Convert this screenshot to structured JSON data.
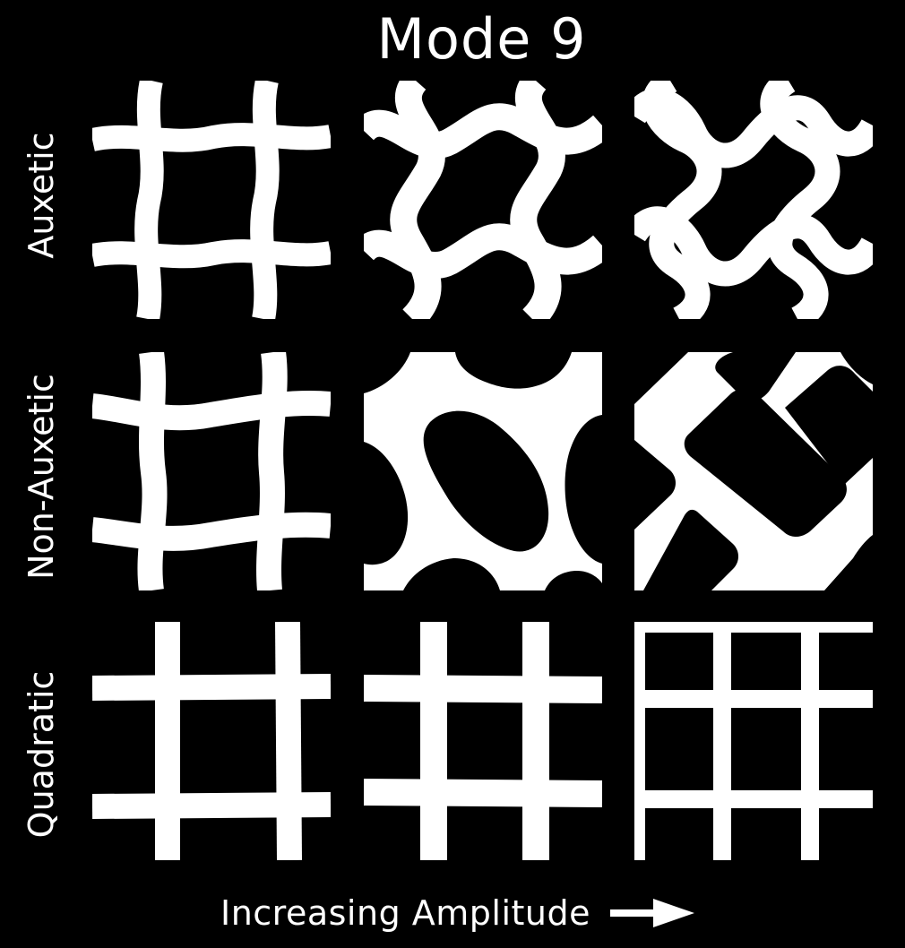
{
  "title": "Mode 9",
  "rows": [
    {
      "label": "Auxetic"
    },
    {
      "label": "Non-Auxetic"
    },
    {
      "label": "Quadratic"
    }
  ],
  "footer": {
    "label": "Increasing Amplitude",
    "arrow_icon": "right-arrow-icon"
  },
  "colors": {
    "background": "#000000",
    "foreground": "#ffffff"
  }
}
